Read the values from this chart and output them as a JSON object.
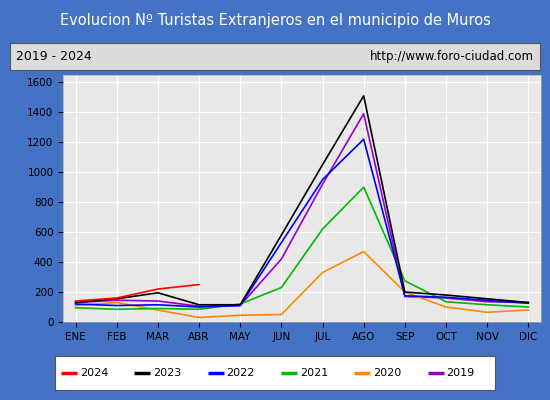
{
  "title": "Evolucion Nº Turistas Extranjeros en el municipio de Muros",
  "subtitle_left": "2019 - 2024",
  "subtitle_right": "http://www.foro-ciudad.com",
  "months": [
    "ENE",
    "FEB",
    "MAR",
    "ABR",
    "MAY",
    "JUN",
    "JUL",
    "AGO",
    "SEP",
    "OCT",
    "NOV",
    "DIC"
  ],
  "series": {
    "2024": {
      "color": "#ff0000",
      "values": [
        140,
        160,
        220,
        250,
        null,
        null,
        null,
        null,
        null,
        null,
        null,
        null
      ]
    },
    "2023": {
      "color": "#000000",
      "values": [
        130,
        155,
        195,
        115,
        115,
        580,
        1050,
        1510,
        200,
        180,
        155,
        130
      ]
    },
    "2022": {
      "color": "#0000ff",
      "values": [
        120,
        110,
        115,
        100,
        110,
        530,
        950,
        1220,
        175,
        165,
        145,
        125
      ]
    },
    "2021": {
      "color": "#00bb00",
      "values": [
        95,
        85,
        90,
        85,
        120,
        230,
        620,
        900,
        275,
        135,
        115,
        100
      ]
    },
    "2020": {
      "color": "#ff8800",
      "values": [
        110,
        130,
        80,
        30,
        45,
        50,
        330,
        470,
        200,
        100,
        65,
        80
      ]
    },
    "2019": {
      "color": "#9900cc",
      "values": [
        130,
        145,
        140,
        105,
        110,
        420,
        920,
        1390,
        170,
        160,
        135,
        130
      ]
    }
  },
  "ylim": [
    0,
    1650
  ],
  "yticks": [
    0,
    200,
    400,
    600,
    800,
    1000,
    1200,
    1400,
    1600
  ],
  "title_bg_color": "#4472c4",
  "title_font_color": "#ffffff",
  "subtitle_bg_color": "#dcdcdc",
  "plot_bg_color": "#e8e8e8",
  "grid_color": "#ffffff",
  "outer_bg_color": "#4472c4",
  "legend_order": [
    "2024",
    "2023",
    "2022",
    "2021",
    "2020",
    "2019"
  ]
}
